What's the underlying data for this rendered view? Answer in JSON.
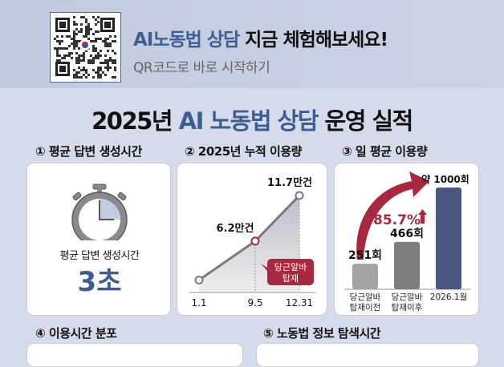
{
  "banner": {
    "title_highlight": "AI노동법 상담",
    "title_rest": " 지금 체험해보세요!",
    "subtitle": "QR코드로 바로 시작하기"
  },
  "main_title": {
    "year": "2025년 ",
    "highlight": "AI 노동법 상담",
    "rest": " 운영 실적"
  },
  "sections": [
    {
      "label": "① 평균 답변 생성시간"
    },
    {
      "label": "② 2025년 누적 이용량"
    },
    {
      "label": "③ 일 평균 이용량"
    },
    {
      "label": "④ 이용시간 분포"
    },
    {
      "label": "⑤ 노동법 정보 탐색시간"
    }
  ],
  "card1": {
    "caption": "평균 답변 생성시간",
    "value": "3초",
    "icon": "stopwatch-icon"
  },
  "colors": {
    "blue": "#3d5e93",
    "red": "#a8283f",
    "navy": "#4a5582"
  },
  "chart_data": [
    {
      "type": "line",
      "title": "2025년 누적 이용량",
      "categories": [
        "1.1",
        "9.5",
        "12.31"
      ],
      "values": [
        1.5,
        6.2,
        11.7
      ],
      "unit": "만건",
      "point_labels": [
        "",
        "6.2만건",
        "11.7만건"
      ],
      "annotation": {
        "line1": "당근알바",
        "line2": "탑재"
      }
    },
    {
      "type": "bar",
      "title": "일 평균 이용량",
      "categories": [
        [
          "당근알바",
          "탑재이전"
        ],
        [
          "당근알바",
          "탑재이후"
        ],
        [
          "2026.1월",
          ""
        ]
      ],
      "values": [
        251,
        466,
        1000
      ],
      "value_labels": [
        "251회",
        "466회",
        "약 1000회"
      ],
      "growth": "85.7%"
    }
  ]
}
